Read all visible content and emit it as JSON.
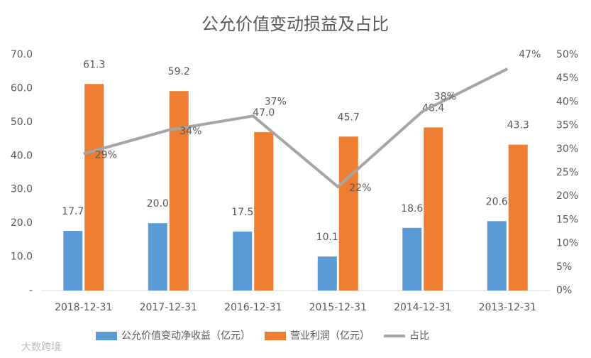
{
  "chart_data": {
    "type": "bar",
    "title": "公允价值变动损益及占比",
    "categories": [
      "2018-12-31",
      "2017-12-31",
      "2016-12-31",
      "2015-12-31",
      "2014-12-31",
      "2013-12-31"
    ],
    "series": [
      {
        "name": "公允价值变动净收益（亿元）",
        "color": "#5b9bd5",
        "type": "bar",
        "values": [
          17.7,
          20.0,
          17.5,
          10.1,
          18.6,
          20.6
        ],
        "value_labels": [
          "17.7",
          "20.0",
          "17.5",
          "10.1",
          "18.6",
          "20.6"
        ]
      },
      {
        "name": "营业利润（亿元）",
        "color": "#ed7d31",
        "type": "bar",
        "values": [
          61.3,
          59.2,
          47.0,
          45.7,
          48.4,
          43.3
        ],
        "value_labels": [
          "61.3",
          "59.2",
          "47.0",
          "45.7",
          "48.4",
          "43.3"
        ]
      },
      {
        "name": "占比",
        "color": "#a5a5a5",
        "type": "line",
        "axis": "y2",
        "values": [
          29,
          34,
          37,
          22,
          38,
          47
        ],
        "value_labels": [
          "29%",
          "34%",
          "37%",
          "22%",
          "38%",
          "47%"
        ]
      }
    ],
    "ylim": [
      0,
      70
    ],
    "yticks": [
      {
        "value": 0,
        "label": "-"
      },
      {
        "value": 10,
        "label": "10.0"
      },
      {
        "value": 20,
        "label": "20.0"
      },
      {
        "value": 30,
        "label": "30.0"
      },
      {
        "value": 40,
        "label": "40.0"
      },
      {
        "value": 50,
        "label": "50.0"
      },
      {
        "value": 60,
        "label": "60.0"
      },
      {
        "value": 70,
        "label": "70.0"
      }
    ],
    "y2lim": [
      0,
      50
    ],
    "y2ticks": [
      {
        "value": 0,
        "label": "0%"
      },
      {
        "value": 5,
        "label": "5%"
      },
      {
        "value": 10,
        "label": "10%"
      },
      {
        "value": 15,
        "label": "15%"
      },
      {
        "value": 20,
        "label": "20%"
      },
      {
        "value": 25,
        "label": "25%"
      },
      {
        "value": 30,
        "label": "30%"
      },
      {
        "value": 35,
        "label": "35%"
      },
      {
        "value": 40,
        "label": "40%"
      },
      {
        "value": 45,
        "label": "45%"
      },
      {
        "value": 50,
        "label": "50%"
      }
    ],
    "legend": "bottom",
    "watermark": "大数跨境"
  }
}
